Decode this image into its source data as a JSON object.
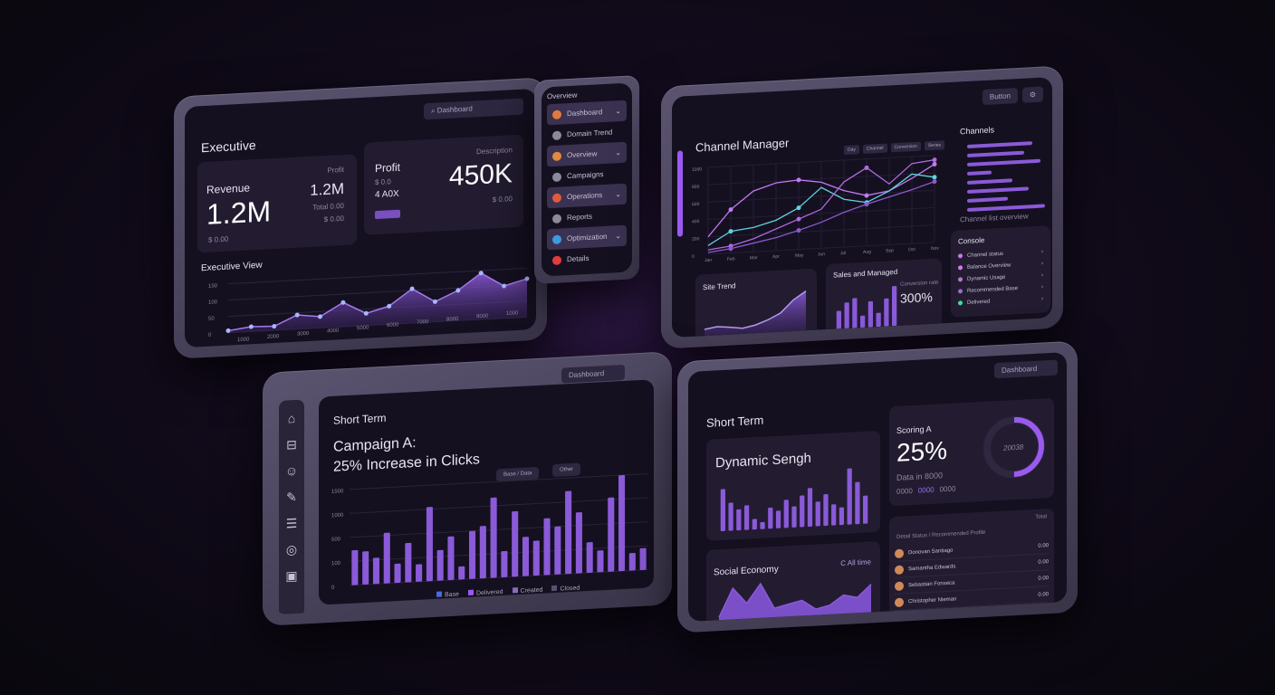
{
  "executive": {
    "title": "Executive",
    "search": "Dashboard",
    "revenue": {
      "label": "Revenue",
      "value": "1.2M",
      "sub": "$ 0.00",
      "side_label": "Profit",
      "side_value": "1.2M",
      "side_sub": "Total 0.00",
      "side_sub2": "$ 0.00"
    },
    "profit": {
      "label": "Profit",
      "sub1": "$ 0.0",
      "sub2": "4 A0X",
      "corner": "Description",
      "value": "450K",
      "foot": "$ 0.00"
    },
    "chart_title": "Executive View",
    "y_ticks": [
      "150",
      "100",
      "50",
      "0"
    ],
    "x_ticks": [
      "1000",
      "2000",
      "3000",
      "4000",
      "5000",
      "6000",
      "7000",
      "8000",
      "9000",
      "1000"
    ],
    "series": [
      5,
      12,
      10,
      35,
      28,
      60,
      30,
      45,
      85,
      50,
      75,
      115,
      80,
      95
    ]
  },
  "list_panel": {
    "title": "Overview",
    "items": [
      {
        "label": "Dashboard",
        "color": "#e07a3c"
      },
      {
        "label": "Domain Trend",
        "color": "#8a8a9a"
      },
      {
        "label": "Overview",
        "color": "#e08a3c"
      },
      {
        "label": "Campaigns",
        "color": "#8a8a9a"
      },
      {
        "label": "Operations",
        "color": "#e05a3c"
      },
      {
        "label": "Reports",
        "color": "#8a8a9a"
      },
      {
        "label": "Optimization",
        "color": "#3c9ae0"
      },
      {
        "label": "Details",
        "color": "#e03c3c"
      }
    ]
  },
  "channel": {
    "title": "Channel Manager",
    "button": "Button",
    "legend": [
      "Day",
      "Channel",
      "Conversion",
      "Series"
    ],
    "y_ticks": [
      "1000",
      "800",
      "600",
      "400",
      "200",
      "0"
    ],
    "x_ticks": [
      "Jan",
      "Feb",
      "Mar",
      "Apr",
      "May",
      "Jun",
      "Jul",
      "Aug",
      "Sep",
      "Oct",
      "Nov"
    ],
    "series": [
      {
        "color": "#c27af0",
        "values": [
          20,
          50,
          70,
          78,
          80,
          76,
          65,
          58,
          62,
          75,
          90
        ]
      },
      {
        "color": "#5fd4e0",
        "values": [
          10,
          25,
          28,
          35,
          48,
          70,
          55,
          50,
          62,
          80,
          75
        ]
      },
      {
        "color": "#b06ae0",
        "values": [
          5,
          8,
          15,
          25,
          35,
          45,
          75,
          90,
          70,
          92,
          95
        ]
      },
      {
        "color": "#8a5ad0",
        "values": [
          2,
          5,
          10,
          15,
          22,
          30,
          40,
          48,
          55,
          62,
          70
        ]
      }
    ],
    "side_title": "Channels",
    "side_bars": [
      80,
      70,
      90,
      30,
      55,
      75,
      50,
      95
    ],
    "side_foot": "Channel list overview",
    "spark": {
      "title": "Site Trend",
      "values": [
        20,
        25,
        22,
        18,
        24,
        35,
        50,
        80,
        100
      ]
    },
    "bars": {
      "title": "Sales and Managed",
      "caption": "Conversion rate",
      "value": "300%",
      "values": [
        45,
        65,
        75,
        30,
        65,
        35,
        70,
        100
      ]
    },
    "console": {
      "title": "Console",
      "items": [
        {
          "label": "Channel status",
          "color": "#c27af0"
        },
        {
          "label": "Balance Overview",
          "color": "#d07af0"
        },
        {
          "label": "Dynamic Usage",
          "color": "#b07ad0"
        },
        {
          "label": "Recommended Base",
          "color": "#9a6ad0"
        },
        {
          "label": "Delivered",
          "color": "#3ce0a0"
        }
      ]
    }
  },
  "campaign": {
    "section": "Short Term",
    "headline1": "Campaign A:",
    "headline2": "25% Increase in Clicks",
    "search": "Dashboard",
    "chips": [
      "Base / Data",
      "Other"
    ],
    "y_ticks": [
      "1500",
      "1000",
      "500",
      "100",
      "0"
    ],
    "legend": [
      "Base",
      "Delivered",
      "Created",
      "Closed"
    ],
    "bars": [
      40,
      38,
      30,
      58,
      22,
      45,
      20,
      85,
      35,
      50,
      15,
      55,
      60,
      92,
      30,
      75,
      45,
      40,
      65,
      55,
      95,
      70,
      35,
      25,
      85,
      110,
      20,
      25
    ]
  },
  "short_term": {
    "section": "Short Term",
    "search": "Dashboard",
    "dynamic": {
      "title": "Dynamic Sengh",
      "values": [
        60,
        40,
        30,
        35,
        15,
        10,
        30,
        25,
        40,
        30,
        45,
        55,
        35,
        45,
        30,
        25,
        80,
        60,
        40
      ]
    },
    "stat": {
      "label": "Scoring A",
      "value": "25%",
      "sub": "Data in 8000",
      "chips": [
        "0000",
        "0000",
        "0000"
      ],
      "donut_label": "20038",
      "progress": 0.5
    },
    "social": {
      "title": "Social Economy",
      "tag": "C All time",
      "values": [
        10,
        55,
        30,
        60,
        20,
        25,
        30,
        15,
        20,
        35,
        30,
        50
      ]
    },
    "table": {
      "header": "Detail Status / Recommended Profile",
      "col": "Total",
      "rows": [
        {
          "name": "Donovan Santiago",
          "v": "0.00"
        },
        {
          "name": "Samantha Edwards",
          "v": "0.00"
        },
        {
          "name": "Sebastian Fonseca",
          "v": "0.00"
        },
        {
          "name": "Christopher Nieman",
          "v": "0.00"
        }
      ]
    }
  }
}
